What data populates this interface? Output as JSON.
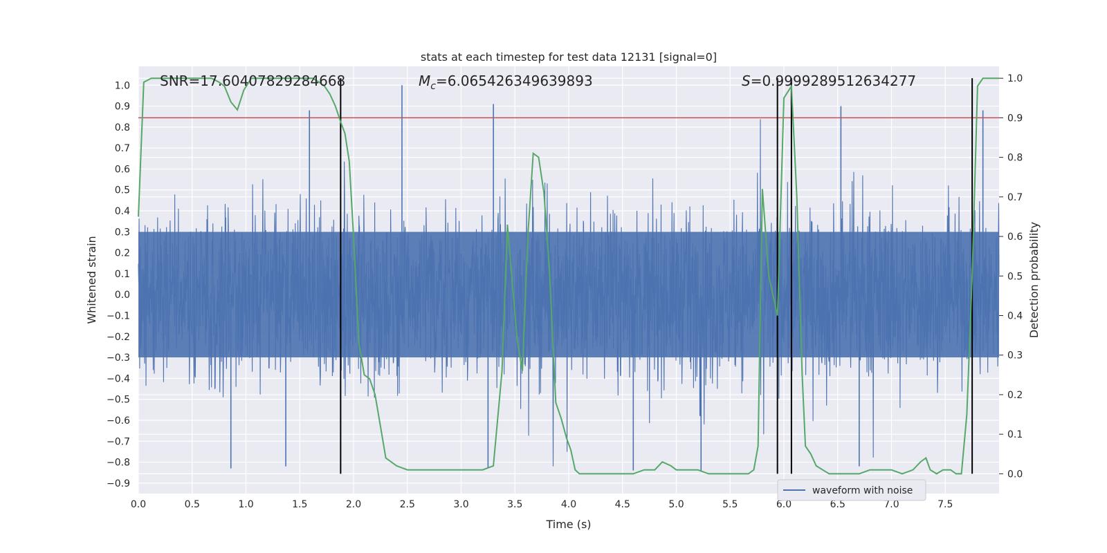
{
  "chart_data": {
    "type": "line",
    "title": "stats at each timestep for test data 12131 [signal=0]",
    "xlabel": "Time (s)",
    "ylabel": "Whitened strain",
    "y2label": "Detection probability",
    "xlim": [
      0.0,
      8.0
    ],
    "ylim": [
      -0.95,
      1.09
    ],
    "y2lim": [
      -0.05,
      1.03
    ],
    "xticks": [
      "0.0",
      "0.5",
      "1.0",
      "1.5",
      "2.0",
      "2.5",
      "3.0",
      "3.5",
      "4.0",
      "4.5",
      "5.0",
      "5.5",
      "6.0",
      "6.5",
      "7.0",
      "7.5"
    ],
    "yticks": [
      "1.0",
      "0.9",
      "0.8",
      "0.7",
      "0.6",
      "0.5",
      "0.4",
      "0.3",
      "0.2",
      "0.1",
      "0.0",
      "-0.1",
      "-0.2",
      "-0.3",
      "-0.4",
      "-0.5",
      "-0.6",
      "-0.7",
      "-0.8",
      "-0.9"
    ],
    "y2ticks": [
      "1.0",
      "0.9",
      "0.8",
      "0.7",
      "0.6",
      "0.5",
      "0.4",
      "0.3",
      "0.2",
      "0.1",
      "0.0"
    ],
    "annotations": {
      "snr": "SNR=17.60407829284668",
      "mc_symbol": "M",
      "mc_sub": "c",
      "mc_value": "=6.065426349639893",
      "s_symbol": "S",
      "s_value": "=0.9999289512634277"
    },
    "legend": {
      "label": "waveform with noise",
      "position": "lower-right"
    },
    "threshold": {
      "value": 0.9,
      "axis": "y2",
      "color": "#c44e52"
    },
    "vlines": [
      1.88,
      5.94,
      6.07,
      7.75
    ],
    "series": [
      {
        "name": "waveform with noise",
        "axis": "y1",
        "color": "#4c72b0",
        "description": "dense noisy strain signal roughly within ±0.45 with spikes up to ~1.0",
        "spikes": [
          {
            "x": 0.86,
            "y": -0.83
          },
          {
            "x": 1.37,
            "y": -0.82
          },
          {
            "x": 1.59,
            "y": 0.88
          },
          {
            "x": 2.45,
            "y": 1.0
          },
          {
            "x": 3.25,
            "y": -0.83
          },
          {
            "x": 3.3,
            "y": 0.91
          },
          {
            "x": 4.6,
            "y": -0.84
          },
          {
            "x": 5.23,
            "y": -0.84
          },
          {
            "x": 6.07,
            "y": 0.97
          },
          {
            "x": 6.53,
            "y": 0.9
          },
          {
            "x": 6.7,
            "y": -0.82
          },
          {
            "x": 7.85,
            "y": 0.88
          }
        ]
      },
      {
        "name": "detection probability",
        "axis": "y2",
        "color": "#55a868",
        "x": [
          0.0,
          0.05,
          0.12,
          0.2,
          0.3,
          0.4,
          0.5,
          0.6,
          0.68,
          0.75,
          0.8,
          0.86,
          0.92,
          0.98,
          1.05,
          1.15,
          1.3,
          1.45,
          1.55,
          1.62,
          1.68,
          1.73,
          1.78,
          1.83,
          1.88,
          1.92,
          1.96,
          2.0,
          2.05,
          2.1,
          2.15,
          2.2,
          2.25,
          2.3,
          2.4,
          2.5,
          2.6,
          2.7,
          2.8,
          2.9,
          3.0,
          3.1,
          3.2,
          3.3,
          3.38,
          3.43,
          3.47,
          3.52,
          3.57,
          3.62,
          3.67,
          3.72,
          3.77,
          3.82,
          3.88,
          3.93,
          3.98,
          4.02,
          4.06,
          4.1,
          4.2,
          4.3,
          4.4,
          4.5,
          4.6,
          4.7,
          4.8,
          4.87,
          4.95,
          5.0,
          5.1,
          5.2,
          5.3,
          5.4,
          5.5,
          5.58,
          5.67,
          5.72,
          5.76,
          5.8,
          5.86,
          5.94,
          6.0,
          6.07,
          6.12,
          6.17,
          6.2,
          6.25,
          6.3,
          6.36,
          6.42,
          6.5,
          6.6,
          6.7,
          6.8,
          6.9,
          7.0,
          7.1,
          7.2,
          7.27,
          7.32,
          7.36,
          7.42,
          7.48,
          7.55,
          7.6,
          7.65,
          7.7,
          7.75,
          7.8,
          7.85,
          7.9,
          7.95,
          8.0
        ],
        "y": [
          0.65,
          0.99,
          1.0,
          1.0,
          1.0,
          1.0,
          1.0,
          1.0,
          1.0,
          0.99,
          0.98,
          0.94,
          0.92,
          0.97,
          1.0,
          1.0,
          1.0,
          1.0,
          1.0,
          1.0,
          0.99,
          0.98,
          0.96,
          0.93,
          0.89,
          0.86,
          0.79,
          0.6,
          0.33,
          0.25,
          0.24,
          0.2,
          0.12,
          0.04,
          0.02,
          0.01,
          0.01,
          0.01,
          0.01,
          0.01,
          0.01,
          0.01,
          0.01,
          0.02,
          0.26,
          0.63,
          0.5,
          0.34,
          0.26,
          0.6,
          0.81,
          0.8,
          0.71,
          0.52,
          0.18,
          0.14,
          0.09,
          0.06,
          0.01,
          0.0,
          0.0,
          0.0,
          0.0,
          0.0,
          0.0,
          0.01,
          0.01,
          0.03,
          0.02,
          0.01,
          0.01,
          0.01,
          0.0,
          0.0,
          0.0,
          0.0,
          0.0,
          0.01,
          0.07,
          0.72,
          0.5,
          0.4,
          0.95,
          0.98,
          0.7,
          0.25,
          0.07,
          0.05,
          0.02,
          0.01,
          0.0,
          0.0,
          0.0,
          0.0,
          0.01,
          0.01,
          0.01,
          0.0,
          0.01,
          0.03,
          0.04,
          0.01,
          0.0,
          0.01,
          0.01,
          0.0,
          0.0,
          0.15,
          0.5,
          0.98,
          1.0,
          1.0,
          1.0,
          1.0
        ]
      }
    ]
  }
}
